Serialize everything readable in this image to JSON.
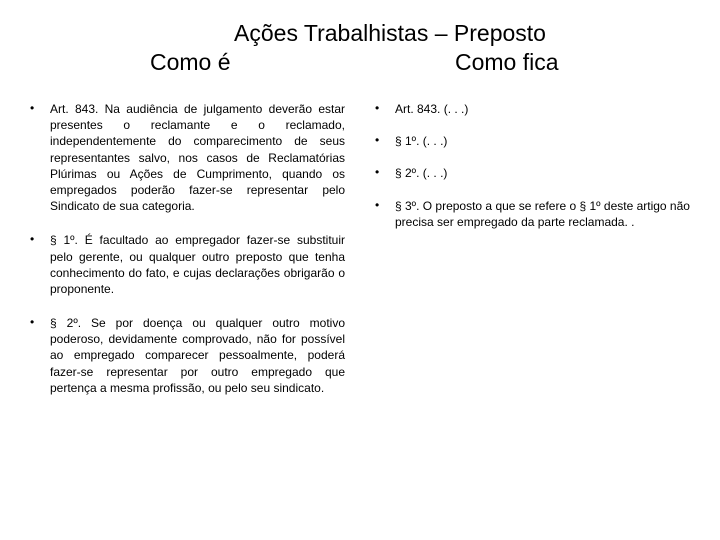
{
  "title": "Ações Trabalhistas – Preposto",
  "subtitle_left": "Como é",
  "subtitle_right": "Como fica",
  "left_column": {
    "items": [
      "Art. 843. Na audiência de julgamento deverão estar presentes o reclamante e o reclamado, independentemente do comparecimento de seus representantes salvo, nos casos de Reclamatórias Plúrimas ou Ações de Cumprimento, quando os empregados poderão fazer-se representar pelo Sindicato de sua categoria.",
      "§ 1º.  É facultado ao empregador fazer-se substituir pelo gerente, ou qualquer outro preposto que tenha conhecimento do fato, e cujas declarações obrigarão o proponente.",
      "§ 2º. Se por doença ou qualquer outro motivo poderoso, devidamente comprovado, não for possível ao empregado comparecer pessoalmente, poderá fazer-se representar por outro empregado que pertença a mesma profissão, ou pelo seu sindicato."
    ]
  },
  "right_column": {
    "items": [
      "Art. 843.  (. . .)",
      "§ 1º. (. . .)",
      "§ 2º. (. . .)",
      "§ 3º. O preposto a que se refere o § 1º deste artigo não precisa ser empregado da parte reclamada. ."
    ]
  },
  "styling": {
    "background_color": "#ffffff",
    "text_color": "#000000",
    "title_fontsize": 23,
    "body_fontsize": 12,
    "font_family": "Arial"
  }
}
